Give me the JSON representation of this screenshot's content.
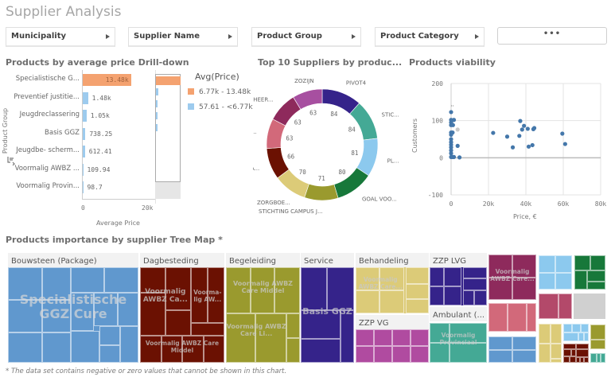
{
  "app": {
    "title": "Supplier Analysis"
  },
  "filters": [
    {
      "label": "Municipality"
    },
    {
      "label": "Supplier Name"
    },
    {
      "label": "Product Group"
    },
    {
      "label": "Product Category"
    }
  ],
  "more_button": {
    "label": "•••"
  },
  "bar_panel": {
    "title": "Products by average price Drill-down",
    "y_axis_title": "Product Group",
    "x_axis_title": "Average Price",
    "x_ticks": [
      "0",
      "20k"
    ],
    "legend_title": "Avg(Price)",
    "legend": [
      {
        "label": "6.77k - 13.48k",
        "color": "#f4a270"
      },
      {
        "label": "57.61 - <6.77k",
        "color": "#9dcbee"
      }
    ]
  },
  "donut_panel": {
    "title": "Top 10 Suppliers by produc..."
  },
  "scatter_panel": {
    "title": "Products viability",
    "x_axis_title": "Price, €",
    "y_axis_title": "Customers"
  },
  "treemap_panel": {
    "title": "Products importance by supplier Tree Map *",
    "footnote": "* The data set contains negative or zero values that cannot be shown in this chart.",
    "groups": [
      {
        "header": "Bouwsteen (Package)",
        "color": "#6098ce",
        "labels": [
          "Specialistische GGZ Cure"
        ]
      },
      {
        "header": "Dagbesteding",
        "color": "#6b1102",
        "labels": [
          "Voormalig AWBZ Ca...",
          "Voorma-lig AW...",
          "Voormalig AWBZ Care Middel"
        ]
      },
      {
        "header": "Begeleiding",
        "color": "#9a9a2e",
        "labels": [
          "Voormalig AWBZ Care Middel",
          "Voormalig AWBZ Care Li..."
        ]
      },
      {
        "header": "Service",
        "color": "#35238a",
        "labels": [
          "Basis GGZ"
        ]
      },
      {
        "header": "Behandeling",
        "color": "#dccb78",
        "labels": [
          "Voormalig AWBZ Care..."
        ]
      },
      {
        "header": "ZZP VG",
        "color": "#b04ba0",
        "labels": []
      },
      {
        "header": "ZZP LVG",
        "color": "#35238a",
        "labels": []
      },
      {
        "header": "Ambulant (...",
        "color": "#44a995",
        "labels": [
          "Voormalig Provinciaal"
        ]
      },
      {
        "header": "",
        "color": "#8e2a5c",
        "labels": [
          "Voormalig AWBZ Care..."
        ]
      }
    ]
  },
  "chart_data": [
    {
      "type": "bar",
      "orientation": "horizontal",
      "title": "Products by average price Drill-down",
      "xlabel": "Average Price",
      "ylabel": "Product Group",
      "xlim": [
        0,
        20000
      ],
      "x_ticks": [
        "0",
        "20k"
      ],
      "categories": [
        "Specialistische G...",
        "Preventief justitie...",
        "Jeugdreclassering",
        "Basis GGZ",
        "Jeugdbe- scherm...",
        "Voormalig AWBZ ...",
        "Voormalig Provin..."
      ],
      "values": [
        13480,
        1480,
        1050,
        738.25,
        612.41,
        109.94,
        98.7
      ],
      "value_labels": [
        "13.48k",
        "1.48k",
        "1.05k",
        "738.25",
        "612.41",
        "109.94",
        "98.7"
      ],
      "legend_title": "Avg(Price)",
      "legend": [
        "6.77k - 13.48k",
        "57.61 - <6.77k"
      ],
      "legend_placement": "right",
      "colors": {
        "high": "#f4a270",
        "low": "#9dcbee"
      },
      "high_threshold": 6770
    },
    {
      "type": "pie",
      "donut": true,
      "title": "Top 10 Suppliers by produc...",
      "slices": [
        {
          "label": "PIVOT4",
          "value": 84,
          "color": "#35238a"
        },
        {
          "label": "STIC...",
          "value": 84,
          "color": "#44a995"
        },
        {
          "label": "PL...",
          "value": 81,
          "color": "#8cc9ee"
        },
        {
          "label": "GOAL VOO...",
          "value": 80,
          "color": "#17783a"
        },
        {
          "label": "STICHTING CAMPUS J...",
          "value": 71,
          "color": "#9a9a2e"
        },
        {
          "label": "ZORGBOE...",
          "value": 70,
          "color": "#dccb78"
        },
        {
          "label": "NA...",
          "value": 66,
          "color": "#6b1102"
        },
        {
          "label": "P...",
          "value": 63,
          "color": "#d2697a"
        },
        {
          "label": "S HEER...",
          "value": 63,
          "color": "#8e2a5c"
        },
        {
          "label": "ZOZIJN",
          "value": 63,
          "color": "#a74fa0"
        }
      ]
    },
    {
      "type": "scatter",
      "title": "Products viability",
      "xlabel": "Price, €",
      "ylabel": "Customers",
      "xlim": [
        0,
        80000
      ],
      "ylim": [
        -100,
        200
      ],
      "x_ticks": [
        "0",
        "20k",
        "40k",
        "60k",
        "80k"
      ],
      "y_ticks": [
        "200",
        "100",
        "0",
        "-100"
      ],
      "grid": true,
      "point_color": "#4477aa",
      "points": [
        [
          0,
          123
        ],
        [
          0,
          102
        ],
        [
          0,
          95
        ],
        [
          0,
          88
        ],
        [
          0,
          68
        ],
        [
          0,
          62
        ],
        [
          0,
          50
        ],
        [
          0,
          42
        ],
        [
          0,
          35
        ],
        [
          0,
          28
        ],
        [
          0,
          20
        ],
        [
          0,
          12
        ],
        [
          0,
          2
        ],
        [
          1500,
          102
        ],
        [
          1000,
          88
        ],
        [
          800,
          68
        ],
        [
          3500,
          32
        ],
        [
          1500,
          2
        ],
        [
          800,
          2
        ],
        [
          4500,
          1
        ],
        [
          22500,
          67
        ],
        [
          30000,
          57
        ],
        [
          33000,
          28
        ],
        [
          36500,
          59
        ],
        [
          37000,
          99
        ],
        [
          38000,
          76
        ],
        [
          39000,
          86
        ],
        [
          41000,
          78
        ],
        [
          41500,
          30
        ],
        [
          43500,
          34
        ],
        [
          44000,
          77
        ],
        [
          44500,
          80
        ],
        [
          59500,
          65
        ],
        [
          61000,
          37
        ]
      ],
      "excluded_points": [
        [
          3500,
          76
        ]
      ]
    },
    {
      "type": "heatmap",
      "subtype": "treemap",
      "title": "Products importance by supplier Tree Map *",
      "groups": [
        "Bouwsteen (Package)",
        "Dagbesteding",
        "Begeleiding",
        "Service",
        "Behandeling",
        "ZZP VG",
        "ZZP LVG",
        "Ambulant (..."
      ],
      "annotations": [
        "* The data set contains negative or zero values that cannot be shown in this chart."
      ]
    }
  ]
}
